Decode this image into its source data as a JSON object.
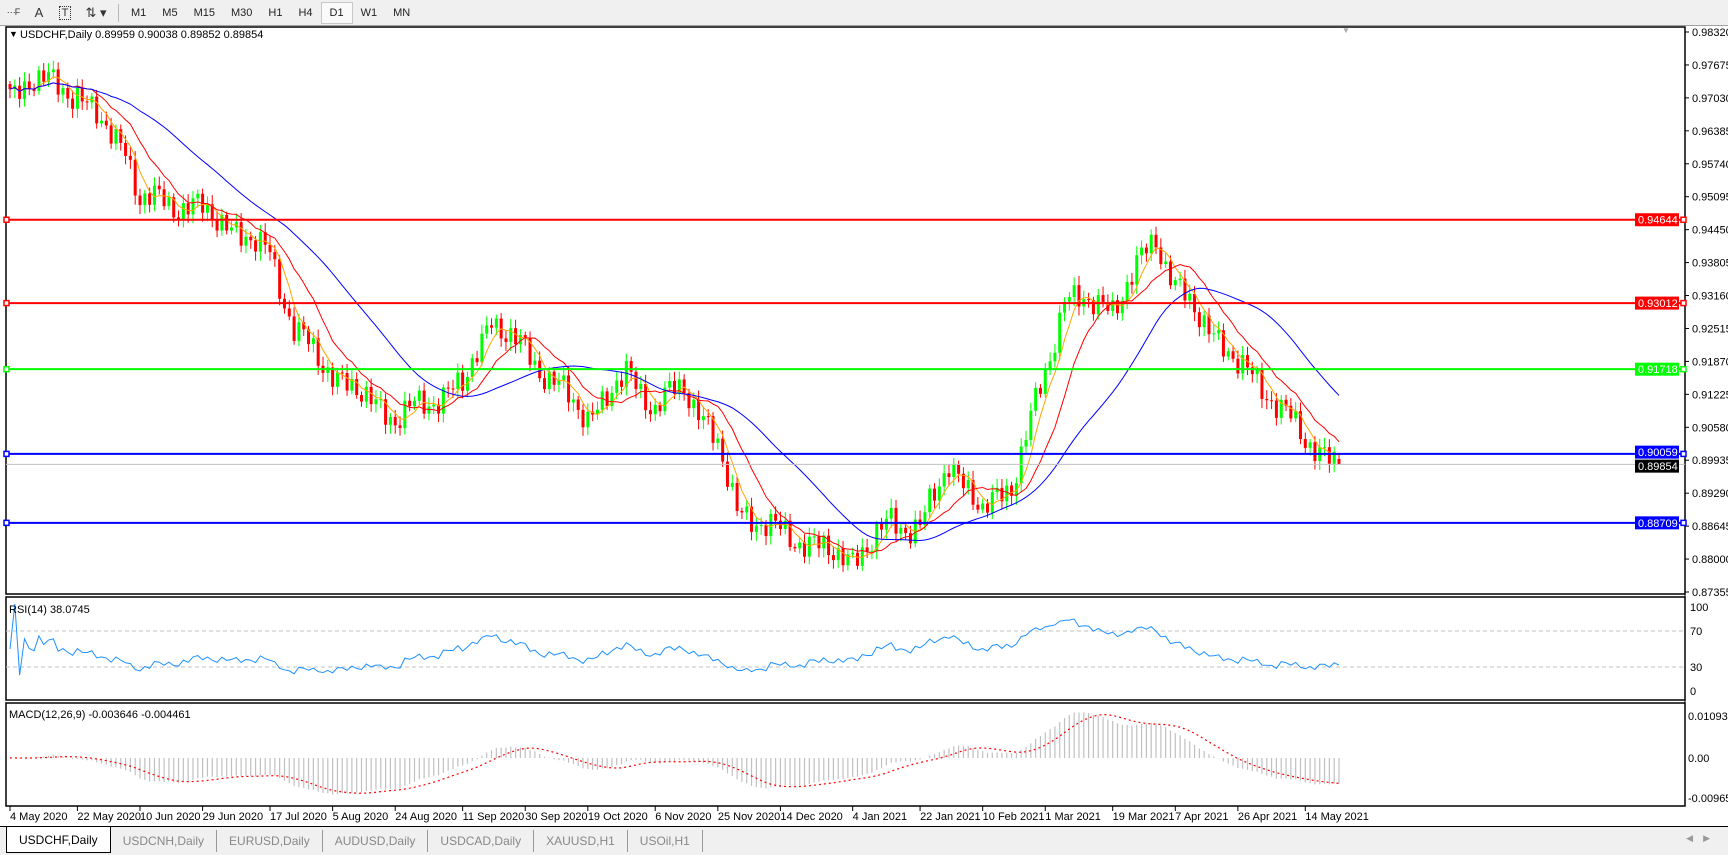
{
  "toolbar": {
    "icons": [
      "period-separator-icon",
      "text-icon",
      "text-label-icon",
      "arrows-icon"
    ],
    "timeframes": [
      "M1",
      "M5",
      "M15",
      "M30",
      "H1",
      "H4",
      "D1",
      "W1",
      "MN"
    ],
    "active_timeframe": "D1"
  },
  "chart": {
    "legend": "USDCHF,Daily  0.89959 0.90038 0.89852 0.89854",
    "price_axis_labels": [
      "0.98320",
      "0.97675",
      "0.97030",
      "0.96385",
      "0.95740",
      "0.95095",
      "0.94450",
      "0.93805",
      "0.93160",
      "0.92515",
      "0.91870",
      "0.91225",
      "0.90580",
      "0.89935",
      "0.89290",
      "0.88645",
      "0.88000",
      "0.87355"
    ],
    "price_range": [
      0.87355,
      0.9832
    ],
    "levels": [
      {
        "price": 0.94644,
        "label": "0.94644",
        "color": "#ff0000"
      },
      {
        "price": 0.93012,
        "label": "0.93012",
        "color": "#ff0000"
      },
      {
        "price": 0.91718,
        "label": "0.91718",
        "color": "#00ff00"
      },
      {
        "price": 0.90059,
        "label": "0.90059",
        "color": "#0000ff"
      },
      {
        "price": 0.88709,
        "label": "0.88709",
        "color": "#0000ff"
      }
    ],
    "bid": {
      "price": 0.89854,
      "label": "0.89854"
    },
    "last_bar": {
      "open": 0.89959,
      "high": 0.90038,
      "low": 0.89852,
      "close": 0.89854
    },
    "colors": {
      "bull": "#00ff00",
      "bear": "#ff0000",
      "ma_fast": "#ffa500",
      "ma_mid": "#ff0000",
      "ma_slow": "#0000ff",
      "rsi": "#1e90ff",
      "macd_hist": "#c0c0c0",
      "macd_signal": "#ff0000"
    },
    "close_path": [
      [
        "2020-05-04",
        0.9701
      ],
      [
        "2020-05-08",
        0.9744
      ],
      [
        "2020-05-22",
        0.9711
      ],
      [
        "2020-06-05",
        0.96
      ],
      [
        "2020-06-10",
        0.9507
      ],
      [
        "2020-06-29",
        0.9485
      ],
      [
        "2020-07-17",
        0.9399
      ],
      [
        "2020-07-24",
        0.925
      ],
      [
        "2020-08-05",
        0.9162
      ],
      [
        "2020-08-24",
        0.9076
      ],
      [
        "2020-09-11",
        0.9141
      ],
      [
        "2020-09-21",
        0.927
      ],
      [
        "2020-09-30",
        0.9206
      ],
      [
        "2020-10-19",
        0.9076
      ],
      [
        "2020-10-29",
        0.9162
      ],
      [
        "2020-11-06",
        0.9098
      ],
      [
        "2020-11-16",
        0.914
      ],
      [
        "2020-11-25",
        0.9024
      ],
      [
        "2020-12-01",
        0.8895
      ],
      [
        "2020-12-14",
        0.8852
      ],
      [
        "2021-01-04",
        0.8798
      ],
      [
        "2021-01-14",
        0.8873
      ],
      [
        "2021-01-22",
        0.886
      ],
      [
        "2021-02-01",
        0.899
      ],
      [
        "2021-02-10",
        0.8893
      ],
      [
        "2021-02-18",
        0.8947
      ],
      [
        "2021-03-01",
        0.9162
      ],
      [
        "2021-03-05",
        0.9313
      ],
      [
        "2021-03-19",
        0.9291
      ],
      [
        "2021-04-01",
        0.9431
      ],
      [
        "2021-04-07",
        0.9334
      ],
      [
        "2021-04-26",
        0.9183
      ],
      [
        "2021-05-05",
        0.9119
      ],
      [
        "2021-05-14",
        0.9033
      ],
      [
        "2021-05-25",
        0.89854
      ]
    ]
  },
  "rsi": {
    "label": "RSI(14) 38.0745",
    "axis_labels": [
      "100",
      "70",
      "30",
      "0"
    ]
  },
  "macd": {
    "label": "MACD(12,26,9) -0.003646 -0.004461",
    "axis_labels": [
      "0.010933",
      "0.00",
      "-0.009653"
    ]
  },
  "time_axis": [
    "4 May 2020",
    "22 May 2020",
    "10 Jun 2020",
    "29 Jun 2020",
    "17 Jul 2020",
    "5 Aug 2020",
    "24 Aug 2020",
    "11 Sep 2020",
    "30 Sep 2020",
    "19 Oct 2020",
    "6 Nov 2020",
    "25 Nov 2020",
    "14 Dec 2020",
    "4 Jan 2021",
    "22 Jan 2021",
    "10 Feb 2021",
    "1 Mar 2021",
    "19 Mar 2021",
    "7 Apr 2021",
    "26 Apr 2021",
    "14 May 2021"
  ],
  "tabs": [
    "USDCHF,Daily",
    "USDCNH,Daily",
    "EURUSD,Daily",
    "AUDUSD,Daily",
    "USDCAD,Daily",
    "XAUUSD,H1",
    "USOil,H1"
  ],
  "active_tab": "USDCHF,Daily"
}
